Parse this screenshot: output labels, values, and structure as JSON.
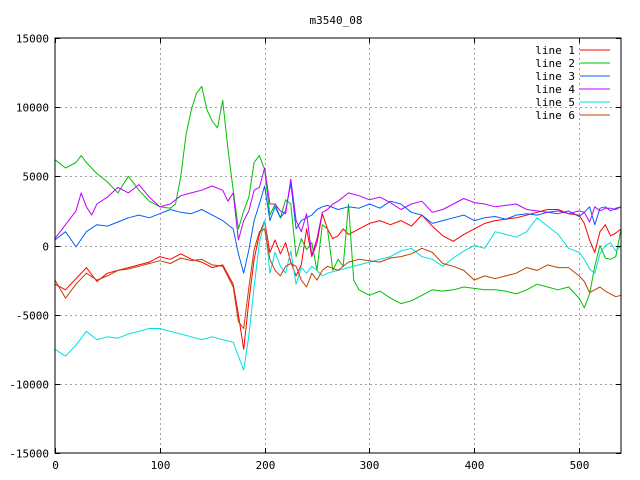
{
  "chart_data": {
    "type": "line",
    "title": "m3540_08",
    "xlabel": "",
    "ylabel": "",
    "xlim": [
      0,
      540
    ],
    "ylim": [
      -15000,
      15000
    ],
    "xticks": [
      0,
      100,
      200,
      300,
      400,
      500
    ],
    "yticks": [
      -15000,
      -10000,
      -5000,
      0,
      5000,
      10000,
      15000
    ],
    "grid": true,
    "legend_position": "top-right",
    "series": [
      {
        "name": "line 1",
        "color": "#ff0000",
        "x": [
          0,
          10,
          20,
          30,
          40,
          50,
          60,
          70,
          80,
          90,
          100,
          110,
          120,
          130,
          140,
          150,
          160,
          170,
          175,
          180,
          185,
          190,
          195,
          200,
          205,
          210,
          215,
          220,
          225,
          230,
          235,
          240,
          245,
          250,
          255,
          260,
          265,
          270,
          275,
          280,
          290,
          300,
          310,
          320,
          330,
          340,
          350,
          360,
          370,
          380,
          390,
          400,
          410,
          420,
          430,
          440,
          450,
          460,
          470,
          480,
          490,
          500,
          505,
          510,
          515,
          520,
          525,
          530,
          535,
          540
        ],
        "y": [
          -2800,
          -3200,
          -2400,
          -1600,
          -2600,
          -2000,
          -1800,
          -1600,
          -1400,
          -1200,
          -800,
          -1000,
          -600,
          -1000,
          -1200,
          -1600,
          -1400,
          -2800,
          -5000,
          -7500,
          -4000,
          -1000,
          800,
          1800,
          -500,
          400,
          -600,
          200,
          -1200,
          -2200,
          -1400,
          1200,
          -800,
          200,
          2300,
          1200,
          500,
          700,
          1200,
          800,
          1200,
          1600,
          1800,
          1500,
          1800,
          1400,
          2200,
          1400,
          700,
          300,
          800,
          1200,
          1600,
          1800,
          1900,
          2000,
          2200,
          2400,
          2600,
          2600,
          2300,
          2200,
          1600,
          400,
          -500,
          1000,
          1500,
          700,
          900,
          1200
        ]
      },
      {
        "name": "line 2",
        "color": "#00c000",
        "x": [
          0,
          10,
          20,
          25,
          30,
          40,
          50,
          60,
          70,
          80,
          90,
          100,
          110,
          115,
          120,
          125,
          130,
          135,
          140,
          145,
          150,
          155,
          160,
          165,
          170,
          175,
          180,
          185,
          190,
          195,
          200,
          205,
          210,
          215,
          220,
          225,
          230,
          235,
          240,
          245,
          250,
          255,
          260,
          265,
          270,
          275,
          280,
          285,
          290,
          300,
          310,
          320,
          330,
          340,
          350,
          360,
          370,
          380,
          390,
          400,
          410,
          420,
          430,
          440,
          450,
          460,
          470,
          480,
          490,
          500,
          505,
          510,
          515,
          520,
          525,
          530,
          535,
          540
        ],
        "y": [
          6200,
          5600,
          6000,
          6500,
          6000,
          5200,
          4600,
          3800,
          5000,
          4000,
          3200,
          2800,
          2700,
          3000,
          5000,
          8000,
          9800,
          11000,
          11500,
          9800,
          9000,
          8500,
          10500,
          7000,
          4000,
          1200,
          2500,
          3500,
          6000,
          6500,
          5500,
          2200,
          3000,
          2000,
          3300,
          3000,
          -800,
          500,
          -300,
          200,
          -1800,
          1500,
          1200,
          -1800,
          -1000,
          -1500,
          3000,
          -2500,
          -3200,
          -3600,
          -3300,
          -3800,
          -4200,
          -4000,
          -3600,
          -3200,
          -3300,
          -3200,
          -3000,
          -3100,
          -3200,
          -3200,
          -3300,
          -3500,
          -3200,
          -2800,
          -3000,
          -3200,
          -3000,
          -3800,
          -4500,
          -3500,
          -1500,
          0,
          -900,
          -1000,
          -800,
          1200
        ]
      },
      {
        "name": "line 3",
        "color": "#0060ff",
        "x": [
          0,
          10,
          20,
          30,
          40,
          50,
          60,
          70,
          80,
          90,
          100,
          110,
          120,
          130,
          140,
          150,
          160,
          170,
          175,
          180,
          185,
          190,
          195,
          200,
          205,
          210,
          215,
          220,
          225,
          230,
          235,
          240,
          245,
          250,
          255,
          260,
          270,
          280,
          290,
          300,
          310,
          320,
          330,
          340,
          350,
          360,
          370,
          380,
          390,
          400,
          410,
          420,
          430,
          440,
          450,
          460,
          470,
          480,
          490,
          500,
          505,
          510,
          515,
          520,
          525,
          530,
          535,
          540
        ],
        "y": [
          400,
          1000,
          -100,
          1000,
          1500,
          1400,
          1700,
          2000,
          2200,
          2000,
          2300,
          2600,
          2400,
          2300,
          2600,
          2200,
          1800,
          1200,
          -600,
          -2000,
          -300,
          1800,
          3000,
          4300,
          1800,
          2800,
          2000,
          2500,
          4500,
          1200,
          1800,
          2000,
          2200,
          2600,
          2800,
          2900,
          2600,
          2800,
          2700,
          3000,
          2700,
          3200,
          3000,
          2400,
          2200,
          1600,
          1800,
          2000,
          2200,
          1800,
          2000,
          2100,
          1900,
          2200,
          2300,
          2200,
          2400,
          2300,
          2500,
          2100,
          2400,
          2800,
          1500,
          2700,
          2800,
          2500,
          2700,
          2800
        ]
      },
      {
        "name": "line 4",
        "color": "#c000ff",
        "x": [
          0,
          10,
          20,
          25,
          30,
          35,
          40,
          50,
          60,
          70,
          80,
          90,
          100,
          110,
          120,
          130,
          140,
          150,
          160,
          165,
          170,
          175,
          180,
          185,
          190,
          195,
          200,
          205,
          210,
          215,
          220,
          225,
          230,
          235,
          240,
          245,
          250,
          255,
          260,
          265,
          270,
          280,
          290,
          300,
          310,
          320,
          330,
          340,
          350,
          360,
          370,
          380,
          390,
          400,
          410,
          420,
          430,
          440,
          450,
          460,
          470,
          480,
          490,
          500,
          505,
          510,
          515,
          520,
          525,
          530,
          535,
          540
        ],
        "y": [
          500,
          1500,
          2500,
          3800,
          2800,
          2200,
          3000,
          3500,
          4200,
          3800,
          4400,
          3500,
          2800,
          3000,
          3600,
          3800,
          4000,
          4300,
          4000,
          3200,
          3800,
          400,
          1800,
          2500,
          4000,
          4200,
          5600,
          3000,
          3000,
          2500,
          2300,
          4800,
          1800,
          1000,
          2300,
          -700,
          500,
          2400,
          2600,
          3000,
          3200,
          3800,
          3600,
          3300,
          3500,
          3100,
          2600,
          3000,
          3200,
          2400,
          2600,
          3000,
          3400,
          3100,
          3000,
          2800,
          2900,
          3000,
          2600,
          2500,
          2400,
          2500,
          2300,
          2500,
          2400,
          1700,
          2800,
          2500,
          2700,
          2700,
          2600,
          2800
        ]
      },
      {
        "name": "line 5",
        "color": "#00e0e0",
        "x": [
          0,
          10,
          20,
          30,
          40,
          50,
          60,
          70,
          80,
          90,
          100,
          110,
          120,
          130,
          140,
          150,
          160,
          170,
          175,
          180,
          185,
          190,
          195,
          200,
          205,
          210,
          215,
          220,
          225,
          230,
          235,
          240,
          245,
          250,
          255,
          260,
          270,
          280,
          290,
          300,
          310,
          320,
          330,
          340,
          350,
          360,
          370,
          380,
          390,
          400,
          410,
          420,
          430,
          440,
          450,
          460,
          470,
          480,
          490,
          500,
          505,
          510,
          515,
          520,
          525,
          530,
          535,
          540
        ],
        "y": [
          -7500,
          -8000,
          -7200,
          -6200,
          -6800,
          -6600,
          -6700,
          -6400,
          -6200,
          -6000,
          -6000,
          -6200,
          -6400,
          -6600,
          -6800,
          -6600,
          -6800,
          -7000,
          -8000,
          -9000,
          -6500,
          -3000,
          200,
          1800,
          -2000,
          -500,
          -1500,
          -2000,
          -400,
          -2800,
          -1600,
          -2000,
          -1500,
          -1800,
          -2200,
          -2000,
          -1800,
          -1600,
          -1400,
          -1200,
          -1000,
          -800,
          -400,
          -200,
          -800,
          -1000,
          -1500,
          -900,
          -400,
          0,
          -200,
          1000,
          800,
          600,
          1000,
          2000,
          1400,
          800,
          -200,
          -500,
          -1000,
          -1700,
          -2000,
          -600,
          0,
          200,
          -400,
          0
        ]
      },
      {
        "name": "line 6",
        "color": "#c04000",
        "x": [
          0,
          10,
          20,
          30,
          40,
          50,
          60,
          70,
          80,
          90,
          100,
          110,
          120,
          130,
          140,
          150,
          160,
          170,
          175,
          180,
          185,
          190,
          195,
          200,
          205,
          210,
          215,
          220,
          225,
          230,
          235,
          240,
          245,
          250,
          255,
          260,
          270,
          280,
          290,
          300,
          310,
          320,
          330,
          340,
          350,
          360,
          370,
          380,
          390,
          400,
          410,
          420,
          430,
          440,
          450,
          460,
          470,
          480,
          490,
          500,
          505,
          510,
          515,
          520,
          525,
          530,
          535,
          540
        ],
        "y": [
          -2500,
          -3800,
          -2800,
          -2000,
          -2500,
          -2200,
          -1800,
          -1700,
          -1500,
          -1300,
          -1100,
          -1300,
          -900,
          -1100,
          -1000,
          -1400,
          -1500,
          -3000,
          -5500,
          -6000,
          -3000,
          -300,
          1000,
          1200,
          -1000,
          -1800,
          -2200,
          -1500,
          -1300,
          -1500,
          -2500,
          -3000,
          -2000,
          -2500,
          -1800,
          -1500,
          -1800,
          -1200,
          -1000,
          -1100,
          -1200,
          -900,
          -800,
          -600,
          -200,
          -500,
          -1300,
          -1500,
          -1800,
          -2500,
          -2200,
          -2400,
          -2200,
          -2000,
          -1600,
          -1800,
          -1400,
          -1600,
          -1600,
          -2200,
          -2600,
          -3400,
          -3200,
          -3000,
          -3300,
          -3500,
          -3700,
          -3600
        ]
      }
    ]
  }
}
